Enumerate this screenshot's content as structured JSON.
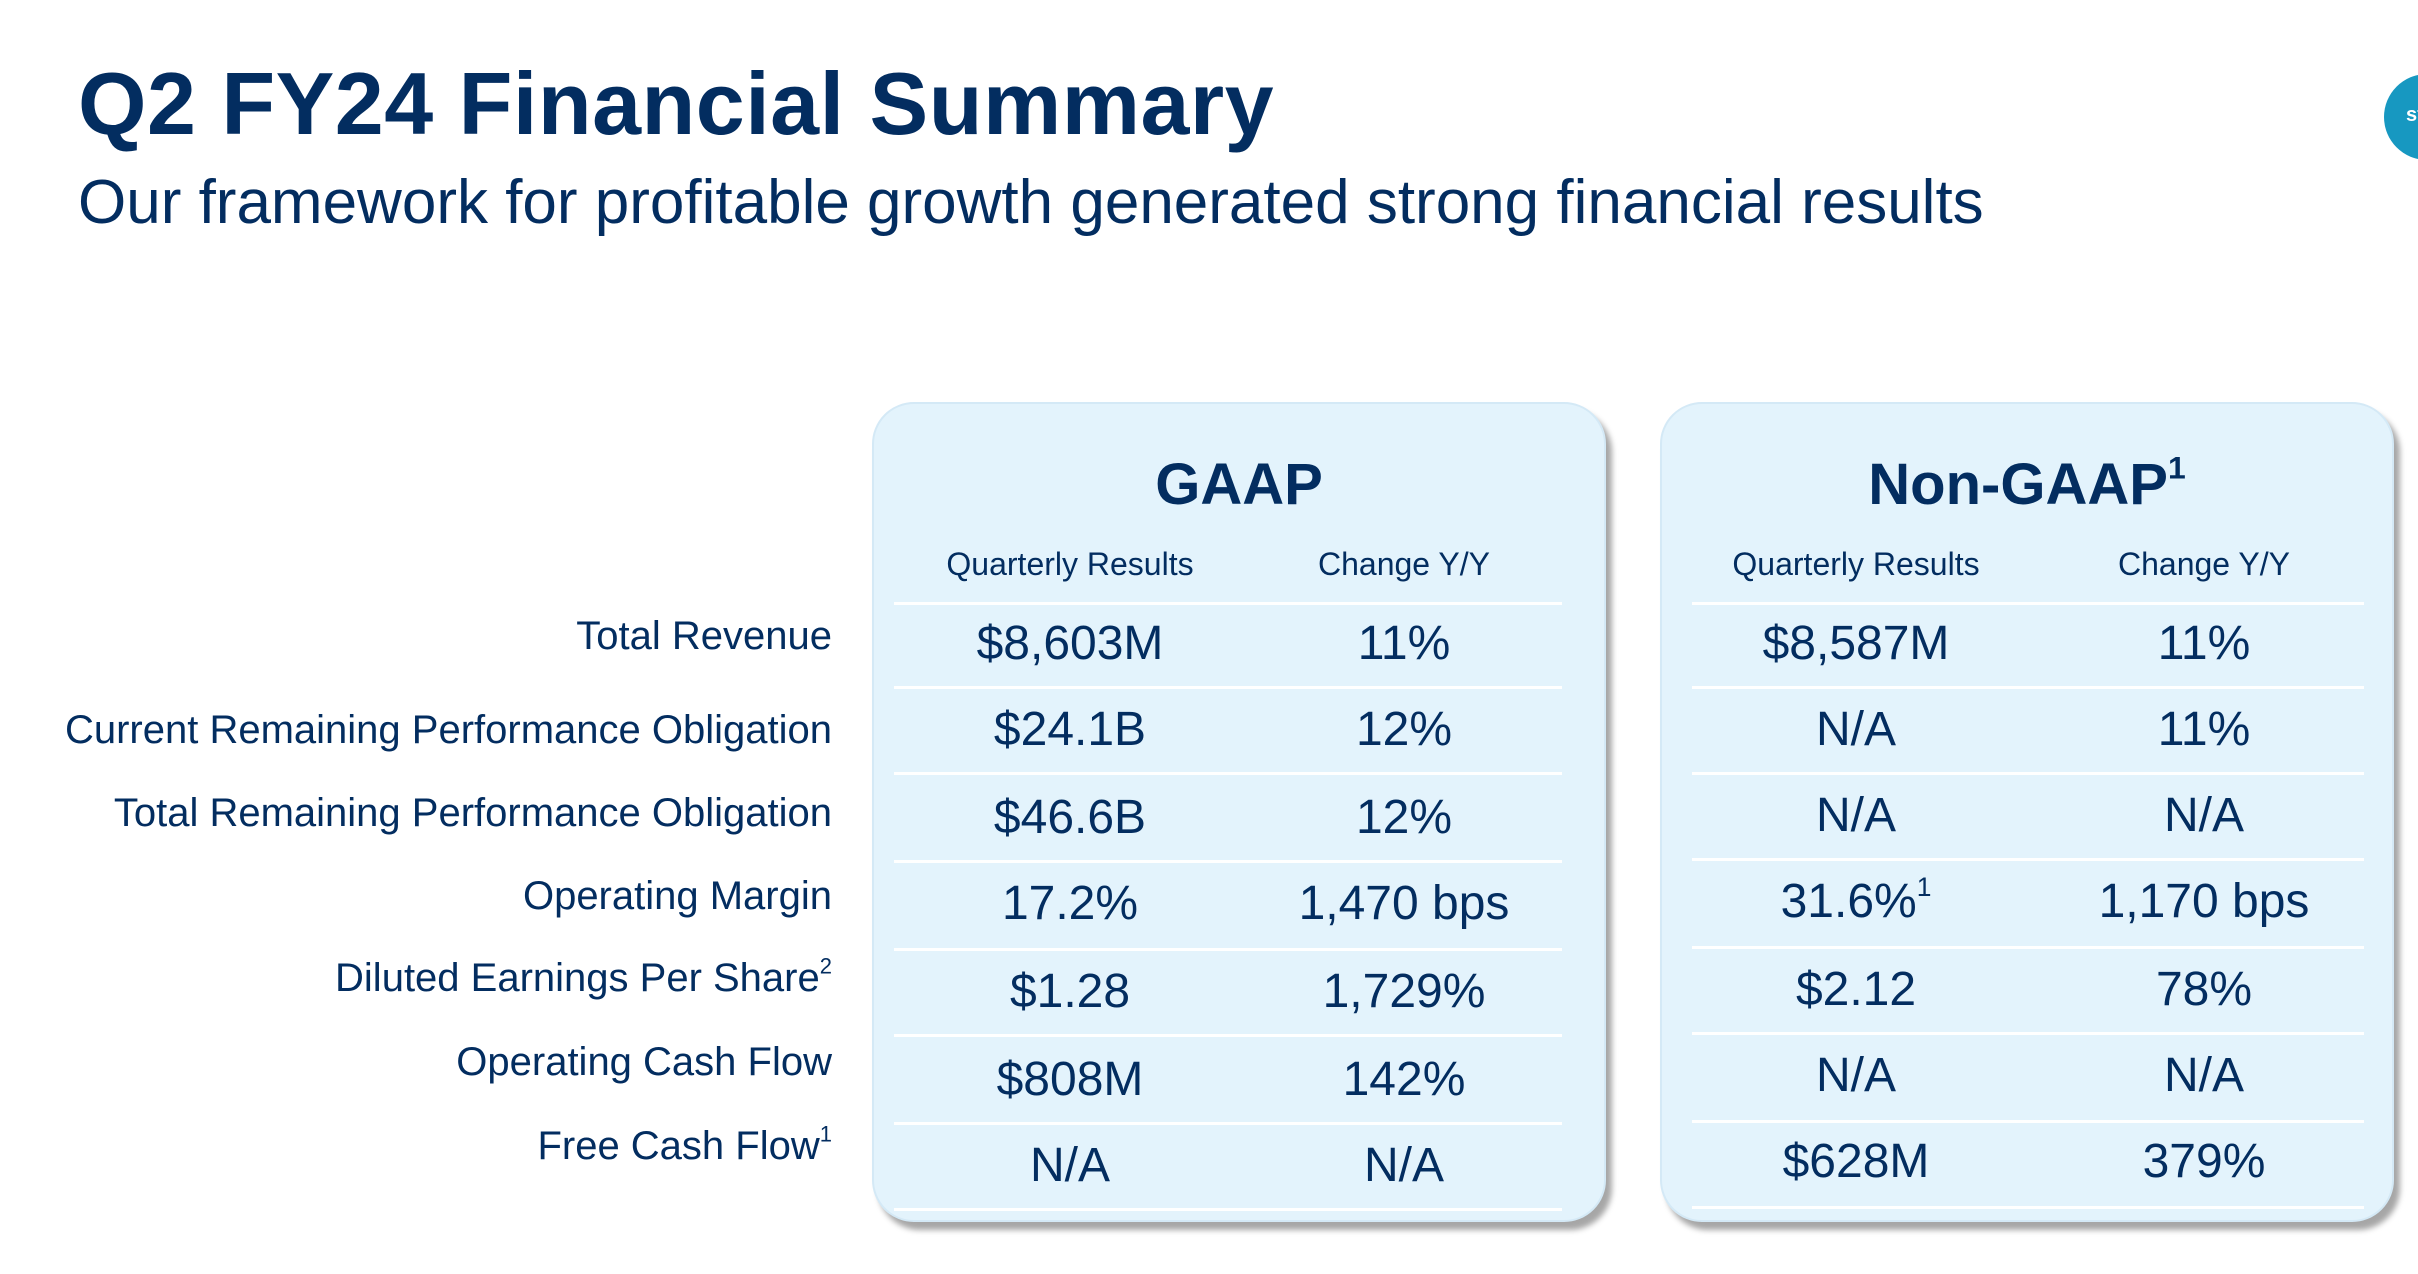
{
  "header": {
    "title": "Q2 FY24 Financial Summary",
    "subtitle": "Our framework for profitable growth generated strong financial results",
    "logo_text": "sf"
  },
  "rows": [
    {
      "label": "Total Revenue",
      "sup": ""
    },
    {
      "label": "Current Remaining Performance Obligation",
      "sup": ""
    },
    {
      "label": "Total Remaining Performance Obligation",
      "sup": ""
    },
    {
      "label": "Operating Margin",
      "sup": ""
    },
    {
      "label": "Diluted Earnings Per Share",
      "sup": "2"
    },
    {
      "label": "Operating Cash Flow",
      "sup": ""
    },
    {
      "label": "Free Cash Flow",
      "sup": "1"
    }
  ],
  "gaap": {
    "title": "GAAP",
    "col1": "Quarterly Results",
    "col2": "Change Y/Y",
    "values": [
      [
        "$8,603M",
        "11%"
      ],
      [
        "$24.1B",
        "12%"
      ],
      [
        "$46.6B",
        "12%"
      ],
      [
        "17.2%",
        "1,470 bps"
      ],
      [
        "$1.28",
        "1,729%"
      ],
      [
        "$808M",
        "142%"
      ],
      [
        "N/A",
        "N/A"
      ]
    ]
  },
  "non_gaap": {
    "title": "Non-GAAP",
    "title_sup": "1",
    "col1": "Quarterly Results",
    "col2": "Change Y/Y",
    "values": [
      [
        "$8,587M",
        "11%"
      ],
      [
        "N/A",
        "11%"
      ],
      [
        "N/A",
        "N/A"
      ],
      [
        "31.6%",
        "1,170 bps"
      ],
      [
        "$2.12",
        "78%"
      ],
      [
        "N/A",
        "N/A"
      ],
      [
        "$628M",
        "379%"
      ]
    ],
    "op_margin_sup": "1"
  },
  "colors": {
    "navy": "#032d60",
    "panel": "#e3f3fc",
    "accent": "#1798c1"
  }
}
